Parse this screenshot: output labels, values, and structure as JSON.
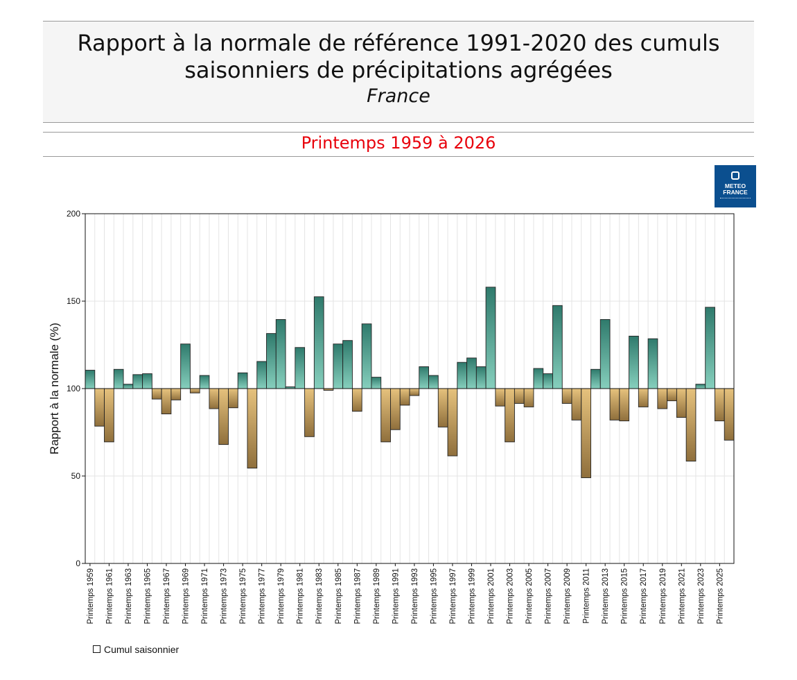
{
  "header": {
    "title_line1": "Rapport à la normale de référence 1991-2020 des cumuls",
    "title_line2": "saisonniers de précipitations agrégées",
    "region": "France",
    "period": "Printemps 1959 à 2026"
  },
  "logo": {
    "text": "METEO\nFRANCE"
  },
  "legend": {
    "label": "Cumul saisonnier"
  },
  "colors": {
    "above_light": "#86cfbd",
    "above_dark": "#2f7a6c",
    "below_light": "#e6c27d",
    "below_dark": "#8f6f3c"
  },
  "chart_data": {
    "type": "bar",
    "title": "Printemps 1959 à 2026",
    "xlabel": "",
    "ylabel": "Rapport à la normale (%)",
    "ylim": [
      0,
      200
    ],
    "yticks": [
      0,
      50,
      100,
      150,
      200
    ],
    "baseline": 100,
    "grid": true,
    "legend_position": "bottom-left",
    "categories": [
      "Printemps 1959",
      "Printemps 1960",
      "Printemps 1961",
      "Printemps 1962",
      "Printemps 1963",
      "Printemps 1964",
      "Printemps 1965",
      "Printemps 1966",
      "Printemps 1967",
      "Printemps 1968",
      "Printemps 1969",
      "Printemps 1970",
      "Printemps 1971",
      "Printemps 1972",
      "Printemps 1973",
      "Printemps 1974",
      "Printemps 1975",
      "Printemps 1976",
      "Printemps 1977",
      "Printemps 1978",
      "Printemps 1979",
      "Printemps 1980",
      "Printemps 1981",
      "Printemps 1982",
      "Printemps 1983",
      "Printemps 1984",
      "Printemps 1985",
      "Printemps 1986",
      "Printemps 1987",
      "Printemps 1988",
      "Printemps 1989",
      "Printemps 1990",
      "Printemps 1991",
      "Printemps 1992",
      "Printemps 1993",
      "Printemps 1994",
      "Printemps 1995",
      "Printemps 1996",
      "Printemps 1997",
      "Printemps 1998",
      "Printemps 1999",
      "Printemps 2000",
      "Printemps 2001",
      "Printemps 2002",
      "Printemps 2003",
      "Printemps 2004",
      "Printemps 2005",
      "Printemps 2006",
      "Printemps 2007",
      "Printemps 2008",
      "Printemps 2009",
      "Printemps 2010",
      "Printemps 2011",
      "Printemps 2012",
      "Printemps 2013",
      "Printemps 2014",
      "Printemps 2015",
      "Printemps 2016",
      "Printemps 2017",
      "Printemps 2018",
      "Printemps 2019",
      "Printemps 2020",
      "Printemps 2021",
      "Printemps 2022",
      "Printemps 2023",
      "Printemps 2024",
      "Printemps 2025",
      "Printemps 2026"
    ],
    "tick_labels": [
      "Printemps 1959",
      "Printemps 1961",
      "Printemps 1963",
      "Printemps 1965",
      "Printemps 1967",
      "Printemps 1969",
      "Printemps 1971",
      "Printemps 1973",
      "Printemps 1975",
      "Printemps 1977",
      "Printemps 1979",
      "Printemps 1981",
      "Printemps 1983",
      "Printemps 1985",
      "Printemps 1987",
      "Printemps 1989",
      "Printemps 1991",
      "Printemps 1993",
      "Printemps 1995",
      "Printemps 1997",
      "Printemps 1999",
      "Printemps 2001",
      "Printemps 2003",
      "Printemps 2005",
      "Printemps 2007",
      "Printemps 2009",
      "Printemps 2011",
      "Printemps 2013",
      "Printemps 2015",
      "Printemps 2017",
      "Printemps 2019",
      "Printemps 2021",
      "Printemps 2023",
      "Printemps 2025"
    ],
    "series": [
      {
        "name": "Cumul saisonnier",
        "values": [
          110.5,
          78.5,
          69.5,
          111,
          102.5,
          108,
          108.5,
          94,
          85.5,
          93.5,
          125.5,
          97.5,
          107.5,
          88.5,
          68,
          89,
          109,
          54.5,
          115.5,
          131.5,
          139.5,
          101,
          123.5,
          72.5,
          152.5,
          99,
          125.5,
          127.5,
          87,
          137,
          106.5,
          69.5,
          76.5,
          90.5,
          96,
          112.5,
          107.5,
          78,
          61.5,
          115,
          117.5,
          112.5,
          158,
          90,
          69.5,
          91.5,
          89.5,
          111.5,
          108.5,
          147.5,
          91.5,
          82,
          49,
          111,
          139.5,
          82,
          81.5,
          130,
          89.5,
          128.5,
          88.5,
          93,
          83.5,
          58.5,
          102.5,
          146.5,
          81.5,
          70.5
        ]
      }
    ]
  }
}
